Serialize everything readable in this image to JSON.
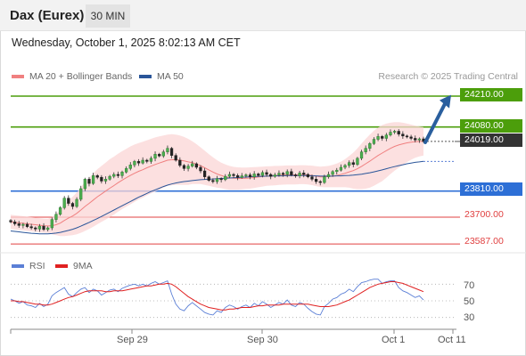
{
  "header": {
    "title": "Dax (Eurex)",
    "interval": "30 MIN"
  },
  "datetime": "Wednesday, October 1, 2025 8:02:13 AM CET",
  "legend": {
    "ma20_label": "MA 20 + Bollinger Bands",
    "ma20_color": "#f08080",
    "ma50_label": "MA 50",
    "ma50_color": "#2a5599",
    "rsi_label": "RSI",
    "rsi_color": "#5b7fd6",
    "ma9_label": "9MA",
    "ma9_color": "#e02020"
  },
  "credit": "Research © 2025 Trading Central",
  "chart_data": [
    {
      "type": "candlestick",
      "levels": [
        {
          "label": "24210.00",
          "value": 24210,
          "kind": "resistance",
          "color": "#4c9e0b"
        },
        {
          "label": "24080.00",
          "value": 24080,
          "kind": "resistance",
          "color": "#4c9e0b"
        },
        {
          "label": "24019.00",
          "value": 24019,
          "kind": "last",
          "color": "#333333"
        },
        {
          "label": "23810.00",
          "value": 23810,
          "kind": "pivot",
          "color": "#2d6fd6"
        },
        {
          "label": "23700.00",
          "value": 23700,
          "kind": "support",
          "color": "#e04040"
        },
        {
          "label": "23587.00",
          "value": 23587,
          "kind": "support",
          "color": "#e04040"
        }
      ],
      "ylim": [
        23580,
        24240
      ],
      "x_ticks": [
        "Sep 29",
        "Sep 30",
        "Oct 1",
        "Oct 11"
      ],
      "close": [
        23680,
        23672,
        23665,
        23670,
        23660,
        23655,
        23650,
        23662,
        23648,
        23655,
        23690,
        23712,
        23740,
        23780,
        23758,
        23745,
        23775,
        23820,
        23860,
        23842,
        23875,
        23868,
        23852,
        23860,
        23872,
        23880,
        23875,
        23890,
        23905,
        23920,
        23935,
        23928,
        23940,
        23935,
        23948,
        23965,
        23958,
        23975,
        23990,
        23960,
        23940,
        23918,
        23905,
        23915,
        23925,
        23910,
        23895,
        23870,
        23855,
        23850,
        23862,
        23858,
        23872,
        23880,
        23875,
        23868,
        23874,
        23878,
        23870,
        23882,
        23876,
        23888,
        23880,
        23872,
        23878,
        23885,
        23880,
        23892,
        23878,
        23874,
        23886,
        23880,
        23870,
        23860,
        23850,
        23846,
        23870,
        23880,
        23892,
        23898,
        23910,
        23918,
        23930,
        23922,
        23948,
        23975,
        23990,
        24010,
        24028,
        24040,
        24032,
        24046,
        24058,
        24062,
        24050,
        24042,
        24038,
        24032,
        24025,
        24030,
        24019
      ],
      "open_offsets_hint": "open = previous close",
      "ma20": [
        23680,
        23678,
        23676,
        23674,
        23672,
        23670,
        23668,
        23666,
        23664,
        23663,
        23664,
        23668,
        23675,
        23686,
        23696,
        23705,
        23716,
        23730,
        23745,
        23758,
        23772,
        23786,
        23798,
        23810,
        23822,
        23833,
        23845,
        23856,
        23866,
        23876,
        23885,
        23893,
        23900,
        23908,
        23915,
        23922,
        23928,
        23934,
        23940,
        23942,
        23942,
        23940,
        23937,
        23933,
        23930,
        23924,
        23917,
        23908,
        23899,
        23890,
        23882,
        23876,
        23870,
        23866,
        23864,
        23863,
        23863,
        23864,
        23865,
        23867,
        23869,
        23871,
        23873,
        23874,
        23875,
        23876,
        23877,
        23878,
        23878,
        23878,
        23879,
        23879,
        23878,
        23876,
        23873,
        23870,
        23870,
        23871,
        23873,
        23876,
        23880,
        23885,
        23891,
        23896,
        23904,
        23914,
        23925,
        23936,
        23948,
        23960,
        23970,
        23980,
        23990,
        23998,
        24004,
        24009,
        24013,
        24016,
        24018,
        24019,
        24020
      ],
      "bb_upper": [
        23710,
        23708,
        23706,
        23704,
        23702,
        23700,
        23698,
        23696,
        23694,
        23693,
        23700,
        23712,
        23730,
        23752,
        23770,
        23786,
        23804,
        23826,
        23848,
        23866,
        23884,
        23902,
        23916,
        23930,
        23944,
        23955,
        23967,
        23978,
        23988,
        23998,
        24006,
        24012,
        24018,
        24024,
        24030,
        24036,
        24040,
        24044,
        24048,
        24050,
        24048,
        24044,
        24038,
        24030,
        24020,
        24008,
        23994,
        23980,
        23966,
        23952,
        23940,
        23930,
        23922,
        23916,
        23912,
        23910,
        23909,
        23909,
        23910,
        23911,
        23912,
        23913,
        23914,
        23915,
        23916,
        23916,
        23917,
        23918,
        23918,
        23918,
        23919,
        23919,
        23918,
        23917,
        23915,
        23913,
        23914,
        23916,
        23920,
        23926,
        23934,
        23944,
        23958,
        23972,
        23990,
        24010,
        24030,
        24048,
        24064,
        24078,
        24088,
        24094,
        24098,
        24100,
        24100,
        24098,
        24094,
        24090,
        24086,
        24082,
        24080
      ],
      "bb_lower": [
        23650,
        23648,
        23646,
        23644,
        23642,
        23640,
        23638,
        23636,
        23634,
        23633,
        23628,
        23624,
        23620,
        23620,
        23622,
        23624,
        23628,
        23634,
        23642,
        23650,
        23660,
        23670,
        23680,
        23690,
        23700,
        23711,
        23723,
        23734,
        23744,
        23754,
        23764,
        23774,
        23782,
        23792,
        23800,
        23808,
        23816,
        23824,
        23832,
        23834,
        23836,
        23836,
        23836,
        23836,
        23840,
        23840,
        23840,
        23836,
        23832,
        23828,
        23824,
        23822,
        23818,
        23816,
        23816,
        23816,
        23817,
        23819,
        23820,
        23823,
        23826,
        23829,
        23832,
        23833,
        23834,
        23836,
        23837,
        23838,
        23838,
        23838,
        23839,
        23839,
        23838,
        23835,
        23831,
        23827,
        23826,
        23826,
        23826,
        23826,
        23826,
        23826,
        23824,
        23820,
        23818,
        23818,
        23820,
        23824,
        23832,
        23842,
        23852,
        23866,
        23882,
        23896,
        23908,
        23920,
        23932,
        23942,
        23950,
        23956,
        23960
      ],
      "ma50": [
        23642,
        23640,
        23638,
        23636,
        23634,
        23632,
        23631,
        23630,
        23630,
        23630,
        23631,
        23633,
        23636,
        23640,
        23644,
        23649,
        23655,
        23662,
        23670,
        23678,
        23686,
        23694,
        23703,
        23712,
        23721,
        23730,
        23739,
        23748,
        23757,
        23766,
        23775,
        23784,
        23792,
        23800,
        23808,
        23815,
        23822,
        23829,
        23835,
        23840,
        23844,
        23847,
        23850,
        23852,
        23854,
        23856,
        23858,
        23859,
        23860,
        23861,
        23862,
        23863,
        23864,
        23865,
        23866,
        23867,
        23868,
        23869,
        23870,
        23871,
        23872,
        23872,
        23873,
        23873,
        23874,
        23874,
        23874,
        23875,
        23875,
        23875,
        23875,
        23875,
        23875,
        23874,
        23874,
        23873,
        23873,
        23873,
        23873,
        23874,
        23874,
        23875,
        23876,
        23877,
        23879,
        23881,
        23884,
        23887,
        23891,
        23895,
        23899,
        23904,
        23909,
        23913,
        23917,
        23921,
        23925,
        23928,
        23931,
        23933,
        23935
      ]
    },
    {
      "type": "line",
      "series": [
        {
          "name": "RSI",
          "values": [
            52,
            50,
            47,
            49,
            45,
            44,
            42,
            47,
            43,
            46,
            56,
            60,
            63,
            66,
            58,
            55,
            60,
            64,
            66,
            60,
            64,
            62,
            57,
            60,
            63,
            64,
            61,
            65,
            67,
            69,
            70,
            68,
            70,
            68,
            71,
            73,
            70,
            72,
            74,
            58,
            46,
            40,
            38,
            44,
            48,
            44,
            40,
            36,
            34,
            33,
            38,
            36,
            42,
            45,
            43,
            40,
            43,
            45,
            42,
            47,
            44,
            49,
            46,
            42,
            45,
            48,
            46,
            51,
            45,
            43,
            48,
            46,
            41,
            37,
            34,
            33,
            43,
            47,
            52,
            54,
            58,
            60,
            64,
            61,
            67,
            72,
            73,
            75,
            76,
            76,
            71,
            73,
            74,
            74,
            66,
            62,
            60,
            57,
            54,
            56,
            51
          ]
        },
        {
          "name": "9MA",
          "values": [
            50,
            50,
            49,
            49,
            48,
            47,
            46,
            46,
            45,
            45,
            46,
            48,
            50,
            52,
            54,
            55,
            57,
            59,
            61,
            62,
            62,
            62,
            62,
            61,
            61,
            62,
            62,
            62,
            63,
            64,
            65,
            66,
            67,
            68,
            68,
            69,
            70,
            70,
            71,
            70,
            67,
            63,
            59,
            55,
            52,
            49,
            46,
            44,
            42,
            41,
            40,
            39,
            39,
            40,
            40,
            41,
            42,
            42,
            42,
            43,
            44,
            44,
            45,
            45,
            45,
            45,
            46,
            46,
            46,
            46,
            46,
            46,
            46,
            45,
            44,
            43,
            43,
            43,
            44,
            45,
            47,
            49,
            51,
            54,
            57,
            60,
            63,
            66,
            68,
            70,
            71,
            72,
            73,
            73,
            72,
            71,
            69,
            67,
            65,
            63,
            61
          ]
        }
      ],
      "ylim": [
        20,
        80
      ],
      "y_ticks": [
        "70",
        "50",
        "30"
      ],
      "y_tick_values": [
        70,
        50,
        30
      ]
    }
  ]
}
